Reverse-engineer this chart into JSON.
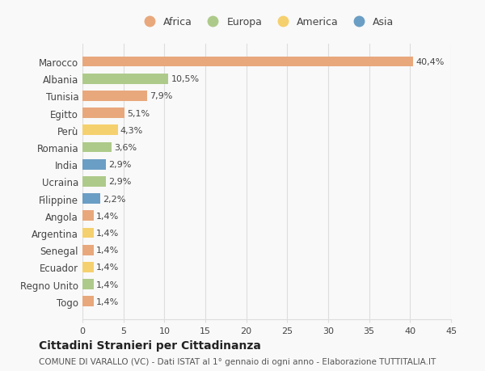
{
  "countries": [
    "Marocco",
    "Albania",
    "Tunisia",
    "Egitto",
    "Perù",
    "Romania",
    "India",
    "Ucraina",
    "Filippine",
    "Angola",
    "Argentina",
    "Senegal",
    "Ecuador",
    "Regno Unito",
    "Togo"
  ],
  "values": [
    40.4,
    10.5,
    7.9,
    5.1,
    4.3,
    3.6,
    2.9,
    2.9,
    2.2,
    1.4,
    1.4,
    1.4,
    1.4,
    1.4,
    1.4
  ],
  "labels": [
    "40,4%",
    "10,5%",
    "7,9%",
    "5,1%",
    "4,3%",
    "3,6%",
    "2,9%",
    "2,9%",
    "2,2%",
    "1,4%",
    "1,4%",
    "1,4%",
    "1,4%",
    "1,4%",
    "1,4%"
  ],
  "continents": [
    "Africa",
    "Europa",
    "Africa",
    "Africa",
    "America",
    "Europa",
    "Asia",
    "Europa",
    "Asia",
    "Africa",
    "America",
    "Africa",
    "America",
    "Europa",
    "Africa"
  ],
  "continent_colors": {
    "Africa": "#E8A87C",
    "Europa": "#AECA8A",
    "America": "#F5D06E",
    "Asia": "#6B9EC4"
  },
  "legend_order": [
    "Africa",
    "Europa",
    "America",
    "Asia"
  ],
  "xlim": [
    0,
    45
  ],
  "xticks": [
    0,
    5,
    10,
    15,
    20,
    25,
    30,
    35,
    40,
    45
  ],
  "title": "Cittadini Stranieri per Cittadinanza",
  "subtitle": "COMUNE DI VARALLO (VC) - Dati ISTAT al 1° gennaio di ogni anno - Elaborazione TUTTITALIA.IT",
  "background_color": "#f9f9f9",
  "grid_color": "#dddddd"
}
